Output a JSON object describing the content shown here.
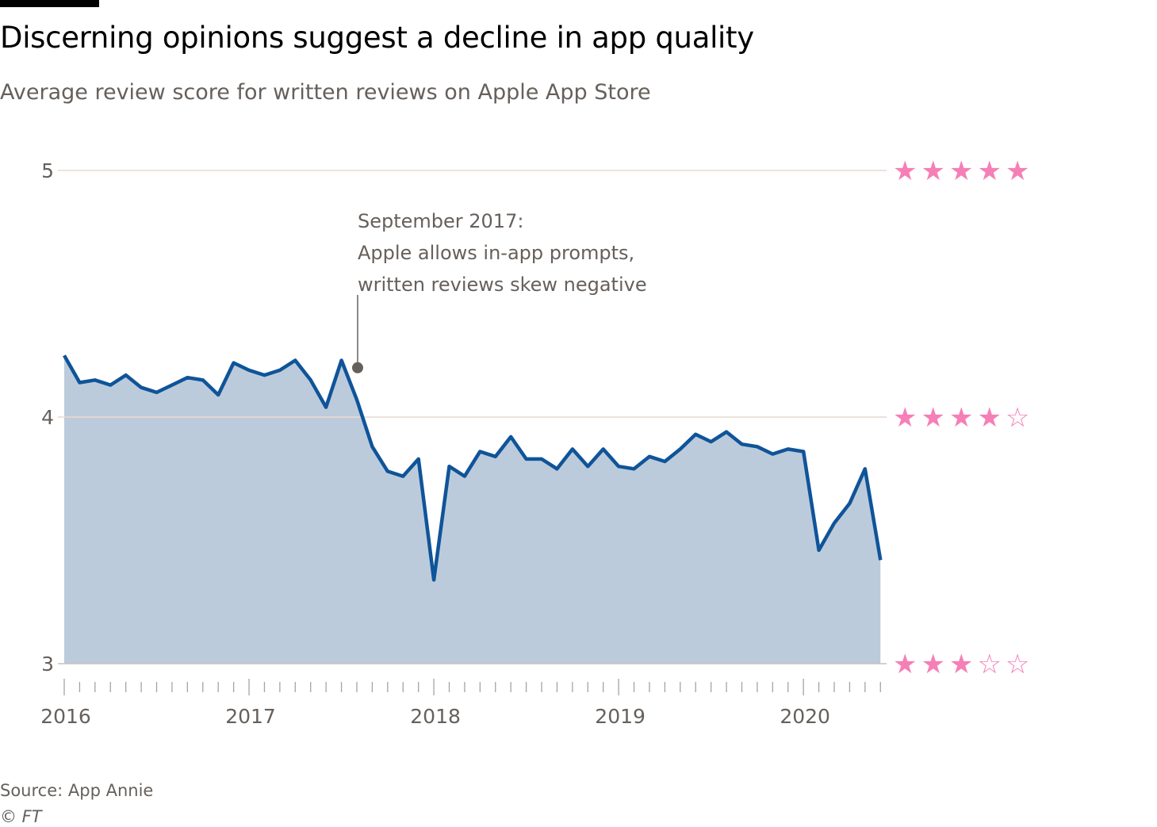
{
  "title": "Discerning opinions suggest a decline in app quality",
  "subtitle": "Average review score for written reviews on Apple App Store",
  "source": "Source: App Annie",
  "copyright": "© FT",
  "colors": {
    "line": "#0f5499",
    "area": "#bccbdb",
    "grid": "#e9d9cf",
    "baseline": "#c7c2be",
    "stars": "#f57fb6",
    "annotation": "#66605c",
    "text": "#66605c"
  },
  "chart_data": {
    "type": "area",
    "x_start": "2016-01",
    "x_step": "month",
    "values": [
      4.25,
      4.14,
      4.15,
      4.13,
      4.17,
      4.12,
      4.1,
      4.13,
      4.16,
      4.15,
      4.09,
      4.22,
      4.19,
      4.17,
      4.19,
      4.23,
      4.15,
      4.04,
      4.23,
      4.07,
      3.88,
      3.78,
      3.76,
      3.83,
      3.34,
      3.8,
      3.76,
      3.86,
      3.84,
      3.92,
      3.83,
      3.83,
      3.79,
      3.87,
      3.8,
      3.87,
      3.8,
      3.79,
      3.84,
      3.82,
      3.87,
      3.93,
      3.9,
      3.94,
      3.89,
      3.88,
      3.85,
      3.87,
      3.86,
      3.46,
      3.57,
      3.65,
      3.79,
      3.42
    ],
    "ylim": [
      3,
      5
    ],
    "yticks": [
      3,
      4,
      5
    ],
    "ytick_labels": [
      "3",
      "4",
      "5"
    ],
    "xtick_labels": [
      "2016",
      "2017",
      "2018",
      "2019",
      "2020"
    ],
    "star_rows": [
      {
        "value": 5,
        "stars": "★★★★★"
      },
      {
        "value": 4,
        "stars": "★★★★☆"
      },
      {
        "value": 3,
        "stars": "★★★☆☆"
      }
    ],
    "annotation": {
      "month_index": 19,
      "marker_value": 4.2,
      "lines": [
        "September 2017:",
        "Apple allows in-app prompts,",
        "written reviews skew negative"
      ]
    }
  }
}
